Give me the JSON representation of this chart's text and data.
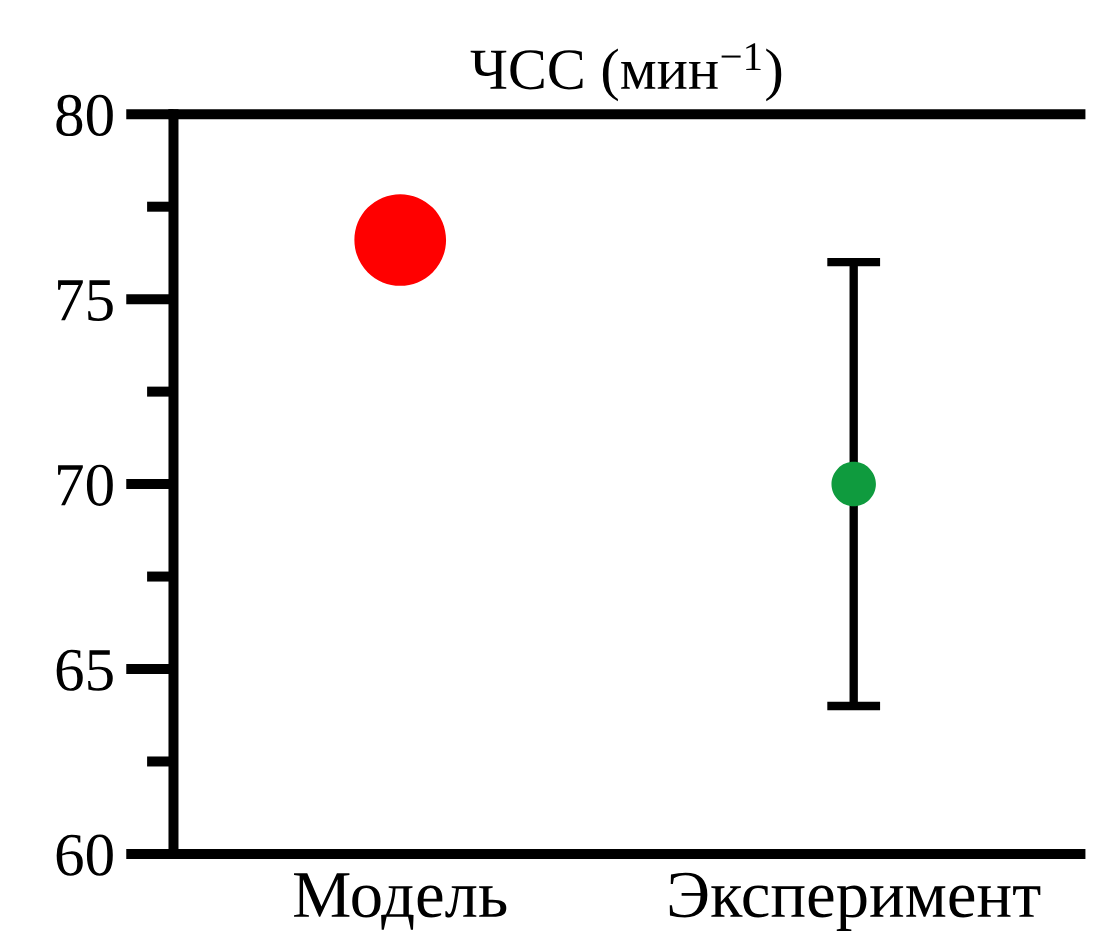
{
  "chart_data": {
    "type": "scatter",
    "title": "ЧСС (мин$^{−1}$)",
    "categories": [
      "Модель",
      "Эксперимент"
    ],
    "values": [
      76.6,
      70
    ],
    "colors": [
      "#ff0000",
      "#0f9b3e"
    ],
    "errors": [
      null,
      6
    ],
    "marker": "circle",
    "ylim": [
      60,
      80
    ],
    "yticks": [
      60,
      {
        "value": 62.5,
        "label": null
      },
      65,
      {
        "value": 67.5,
        "label": null
      },
      70,
      {
        "value": 72.5,
        "label": null
      },
      75,
      {
        "value": 77.5,
        "label": null
      },
      80
    ]
  }
}
